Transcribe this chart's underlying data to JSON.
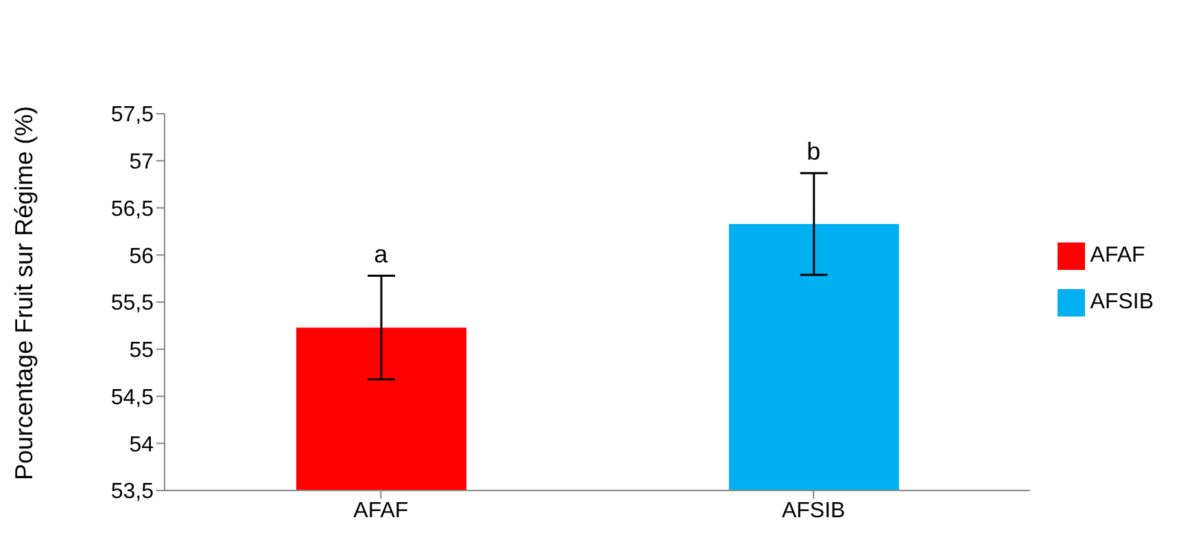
{
  "chart_data": {
    "type": "bar",
    "ylabel": "Pourcentage Fruit sur Régime (%)",
    "categories": [
      "AFAF",
      "AFSIB"
    ],
    "series": [
      {
        "name": "AFAF",
        "color": "#ff0000",
        "values": [
          55.23,
          null
        ],
        "errors": [
          0.55,
          null
        ]
      },
      {
        "name": "AFSIB",
        "color": "#00b0f0",
        "values": [
          null,
          56.33
        ],
        "errors": [
          null,
          0.54
        ]
      }
    ],
    "ylim": [
      53.5,
      57.5
    ],
    "yticks": [
      {
        "value": 53.5,
        "label": "53,5"
      },
      {
        "value": 54,
        "label": "54"
      },
      {
        "value": 54.5,
        "label": "54,5"
      },
      {
        "value": 55,
        "label": "55"
      },
      {
        "value": 55.5,
        "label": "55,5"
      },
      {
        "value": 56,
        "label": "56"
      },
      {
        "value": 56.5,
        "label": "56,5"
      },
      {
        "value": 57,
        "label": "57"
      },
      {
        "value": 57.5,
        "label": "57,5"
      }
    ],
    "grid": false,
    "legend": "right",
    "annotations": [
      {
        "text": "a",
        "x": "AFAF",
        "y": 55.78
      },
      {
        "text": "b",
        "x": "AFSIB",
        "y": 56.87
      }
    ]
  }
}
